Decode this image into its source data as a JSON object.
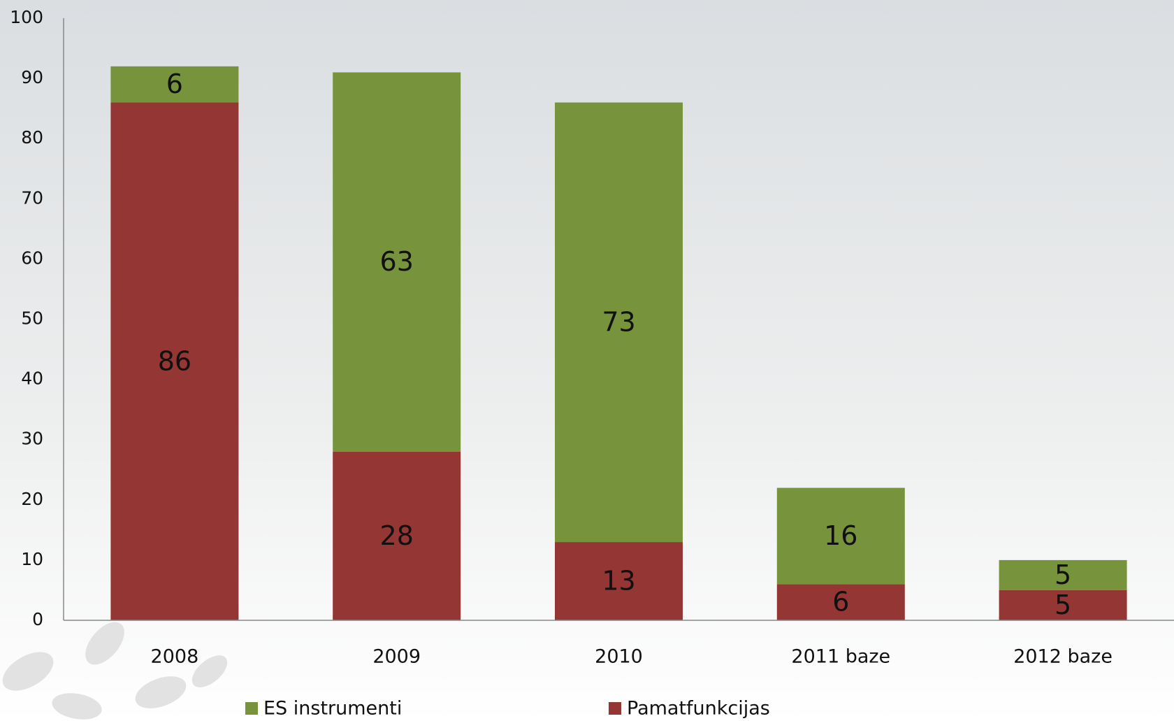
{
  "chart_data": {
    "type": "stacked_bar",
    "categories": [
      "2008",
      "2009",
      "2010",
      "2011 baze",
      "2012 baze"
    ],
    "series": [
      {
        "name": "ES instrumenti",
        "color": "#77933c",
        "values": [
          6,
          63,
          73,
          16,
          5
        ]
      },
      {
        "name": "Pamatfunkcijas",
        "color": "#943634",
        "values": [
          86,
          28,
          13,
          6,
          5
        ]
      }
    ],
    "ylim": [
      0,
      100
    ],
    "yticks": [
      0,
      10,
      20,
      30,
      40,
      50,
      60,
      70,
      80,
      90,
      100
    ],
    "grid": false,
    "legend": "bottom"
  }
}
